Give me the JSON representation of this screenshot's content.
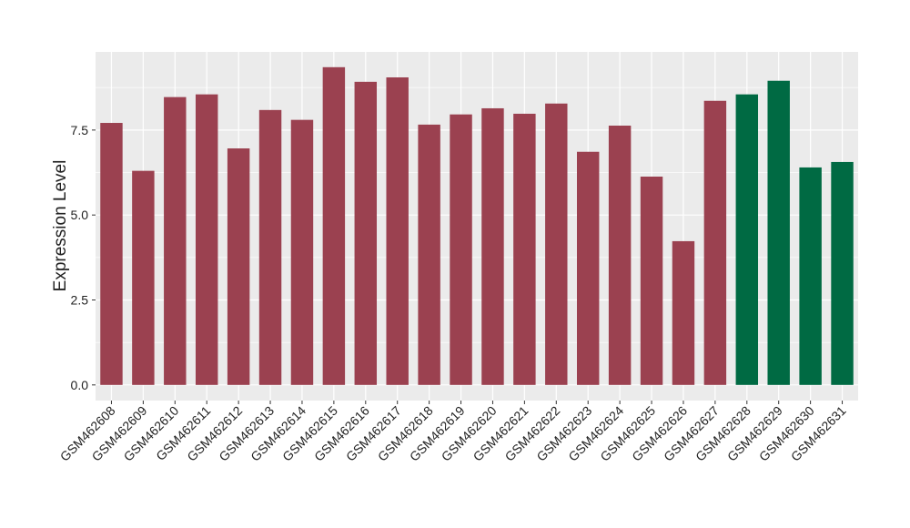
{
  "chart_data": {
    "type": "bar",
    "y_label": "Expression Level",
    "categories": [
      "GSM462608",
      "GSM462609",
      "GSM462610",
      "GSM462611",
      "GSM462612",
      "GSM462613",
      "GSM462614",
      "GSM462615",
      "GSM462616",
      "GSM462617",
      "GSM462618",
      "GSM462619",
      "GSM462620",
      "GSM462621",
      "GSM462622",
      "GSM462623",
      "GSM462624",
      "GSM462625",
      "GSM462626",
      "GSM462627",
      "GSM462628",
      "GSM462629",
      "GSM462630",
      "GSM462631"
    ],
    "values": [
      7.71,
      6.3,
      8.47,
      8.55,
      6.96,
      8.09,
      7.8,
      9.35,
      8.92,
      9.05,
      7.66,
      7.96,
      8.14,
      7.98,
      8.28,
      6.86,
      7.63,
      6.13,
      4.23,
      8.36,
      8.55,
      8.95,
      6.4,
      6.56
    ],
    "colors": [
      "#9b4150",
      "#9b4150",
      "#9b4150",
      "#9b4150",
      "#9b4150",
      "#9b4150",
      "#9b4150",
      "#9b4150",
      "#9b4150",
      "#9b4150",
      "#9b4150",
      "#9b4150",
      "#9b4150",
      "#9b4150",
      "#9b4150",
      "#9b4150",
      "#9b4150",
      "#9b4150",
      "#9b4150",
      "#9b4150",
      "#006a43",
      "#006a43",
      "#006a43",
      "#006a43"
    ],
    "ylim": [
      -0.46,
      9.8
    ],
    "yticks": [
      {
        "value": 0,
        "label": "0.0"
      },
      2.5,
      {
        "value": 5,
        "label": "5.0"
      },
      7.5
    ],
    "grid": true
  }
}
